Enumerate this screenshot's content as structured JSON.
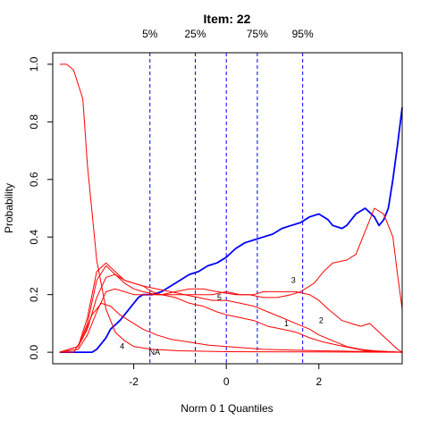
{
  "chart_data": {
    "type": "line",
    "title": "Item:  22",
    "xlabel": "Norm 0 1 Quantiles",
    "ylabel": "Probability",
    "xlim": [
      -3.75,
      3.8
    ],
    "ylim": [
      -0.04,
      1.04
    ],
    "x_ticks": [
      -2,
      0,
      2
    ],
    "y_ticks": [
      0.0,
      0.2,
      0.4,
      0.6,
      0.8,
      1.0
    ],
    "x_tick_labels": [
      "-2",
      "0",
      "2"
    ],
    "y_tick_labels": [
      "0.0",
      "0.2",
      "0.4",
      "0.6",
      "0.8",
      "1.0"
    ],
    "grid": false,
    "legend": "none",
    "quantile_lines": [
      {
        "label": "5%",
        "x": -1.65
      },
      {
        "label": "25%",
        "x": -0.67
      },
      {
        "label": "",
        "x": 0.0
      },
      {
        "label": "75%",
        "x": 0.67
      },
      {
        "label": "95%",
        "x": 1.65
      }
    ],
    "series": [
      {
        "name": "",
        "color": "#0000ff",
        "values": [
          [
            -3.6,
            0.0
          ],
          [
            -3.3,
            0.0
          ],
          [
            -2.9,
            0.0
          ],
          [
            -2.8,
            0.01
          ],
          [
            -2.6,
            0.05
          ],
          [
            -2.5,
            0.08
          ],
          [
            -2.3,
            0.11
          ],
          [
            -2.1,
            0.15
          ],
          [
            -1.9,
            0.19
          ],
          [
            -1.8,
            0.2
          ],
          [
            -1.6,
            0.2
          ],
          [
            -1.4,
            0.21
          ],
          [
            -1.2,
            0.23
          ],
          [
            -1.0,
            0.25
          ],
          [
            -0.8,
            0.27
          ],
          [
            -0.6,
            0.28
          ],
          [
            -0.4,
            0.3
          ],
          [
            -0.2,
            0.31
          ],
          [
            0.0,
            0.33
          ],
          [
            0.2,
            0.36
          ],
          [
            0.4,
            0.38
          ],
          [
            0.6,
            0.39
          ],
          [
            0.8,
            0.4
          ],
          [
            1.0,
            0.41
          ],
          [
            1.2,
            0.43
          ],
          [
            1.4,
            0.44
          ],
          [
            1.6,
            0.45
          ],
          [
            1.8,
            0.47
          ],
          [
            2.0,
            0.48
          ],
          [
            2.2,
            0.46
          ],
          [
            2.3,
            0.44
          ],
          [
            2.5,
            0.43
          ],
          [
            2.6,
            0.44
          ],
          [
            2.8,
            0.48
          ],
          [
            3.0,
            0.5
          ],
          [
            3.2,
            0.47
          ],
          [
            3.3,
            0.44
          ],
          [
            3.4,
            0.46
          ],
          [
            3.5,
            0.5
          ],
          [
            3.6,
            0.6
          ],
          [
            3.7,
            0.72
          ],
          [
            3.8,
            0.85
          ]
        ]
      },
      {
        "name": "",
        "color": "#ff0000",
        "values": [
          [
            -3.6,
            1.0
          ],
          [
            -3.45,
            1.0
          ],
          [
            -3.3,
            0.98
          ],
          [
            -3.1,
            0.88
          ],
          [
            -3.0,
            0.65
          ],
          [
            -2.8,
            0.32
          ],
          [
            -2.6,
            0.15
          ],
          [
            -2.4,
            0.07
          ],
          [
            -2.2,
            0.04
          ],
          [
            -2.0,
            0.02
          ],
          [
            -1.6,
            0.01
          ],
          [
            -1.0,
            0.005
          ],
          [
            0.0,
            0.002
          ],
          [
            3.8,
            0.0
          ]
        ]
      },
      {
        "name": "",
        "color": "#ff0000",
        "values": [
          [
            -3.6,
            0.0
          ],
          [
            -3.3,
            0.0
          ],
          [
            -3.1,
            0.05
          ],
          [
            -2.9,
            0.13
          ],
          [
            -2.7,
            0.17
          ],
          [
            -2.5,
            0.16
          ],
          [
            -2.3,
            0.13
          ],
          [
            -2.0,
            0.1
          ],
          [
            -1.8,
            0.08
          ],
          [
            -1.5,
            0.06
          ],
          [
            -1.2,
            0.045
          ],
          [
            -0.8,
            0.035
          ],
          [
            -0.4,
            0.025
          ],
          [
            0.0,
            0.02
          ],
          [
            0.4,
            0.015
          ],
          [
            0.8,
            0.01
          ],
          [
            2.0,
            0.005
          ],
          [
            3.8,
            0.0
          ]
        ]
      },
      {
        "name": "",
        "color": "#ff0000",
        "values": [
          [
            -3.6,
            0.0
          ],
          [
            -3.2,
            0.01
          ],
          [
            -3.0,
            0.06
          ],
          [
            -2.8,
            0.14
          ],
          [
            -2.6,
            0.21
          ],
          [
            -2.4,
            0.22
          ],
          [
            -2.2,
            0.21
          ],
          [
            -2.0,
            0.2
          ],
          [
            -1.7,
            0.2
          ],
          [
            -1.4,
            0.2
          ],
          [
            -1.1,
            0.21
          ],
          [
            -0.8,
            0.22
          ],
          [
            -0.5,
            0.22
          ],
          [
            -0.2,
            0.21
          ],
          [
            0.2,
            0.2
          ],
          [
            0.5,
            0.2
          ],
          [
            0.8,
            0.19
          ],
          [
            1.1,
            0.19
          ],
          [
            1.4,
            0.2
          ],
          [
            1.6,
            0.21
          ],
          [
            1.9,
            0.24
          ],
          [
            2.1,
            0.28
          ],
          [
            2.3,
            0.31
          ],
          [
            2.6,
            0.32
          ],
          [
            2.8,
            0.34
          ],
          [
            2.9,
            0.38
          ],
          [
            3.0,
            0.42
          ],
          [
            3.2,
            0.5
          ],
          [
            3.4,
            0.48
          ],
          [
            3.6,
            0.4
          ],
          [
            3.7,
            0.27
          ],
          [
            3.8,
            0.15
          ]
        ]
      },
      {
        "name": "",
        "color": "#ff0000",
        "values": [
          [
            -3.6,
            0.0
          ],
          [
            -3.2,
            0.02
          ],
          [
            -3.0,
            0.1
          ],
          [
            -2.8,
            0.25
          ],
          [
            -2.6,
            0.3
          ],
          [
            -2.4,
            0.27
          ],
          [
            -2.2,
            0.24
          ],
          [
            -2.0,
            0.22
          ],
          [
            -1.8,
            0.21
          ],
          [
            -1.5,
            0.2
          ],
          [
            -1.2,
            0.2
          ],
          [
            -0.9,
            0.2
          ],
          [
            -0.6,
            0.2
          ],
          [
            -0.3,
            0.2
          ],
          [
            0.0,
            0.21
          ],
          [
            0.3,
            0.2
          ],
          [
            0.6,
            0.2
          ],
          [
            0.8,
            0.21
          ],
          [
            1.0,
            0.21
          ],
          [
            1.2,
            0.21
          ],
          [
            1.5,
            0.21
          ],
          [
            1.8,
            0.2
          ],
          [
            2.0,
            0.18
          ],
          [
            2.2,
            0.15
          ],
          [
            2.5,
            0.11
          ],
          [
            2.7,
            0.1
          ],
          [
            2.9,
            0.09
          ],
          [
            3.1,
            0.1
          ],
          [
            3.3,
            0.07
          ],
          [
            3.5,
            0.04
          ],
          [
            3.7,
            0.01
          ],
          [
            3.8,
            0.0
          ]
        ]
      },
      {
        "name": "",
        "color": "#ff0000",
        "values": [
          [
            -3.6,
            0.0
          ],
          [
            -3.2,
            0.02
          ],
          [
            -3.0,
            0.12
          ],
          [
            -2.8,
            0.28
          ],
          [
            -2.6,
            0.31
          ],
          [
            -2.4,
            0.28
          ],
          [
            -2.2,
            0.25
          ],
          [
            -2.0,
            0.24
          ],
          [
            -1.8,
            0.23
          ],
          [
            -1.6,
            0.21
          ],
          [
            -1.4,
            0.2
          ],
          [
            -1.1,
            0.19
          ],
          [
            -0.8,
            0.17
          ],
          [
            -0.5,
            0.16
          ],
          [
            -0.2,
            0.14
          ],
          [
            0.0,
            0.13
          ],
          [
            0.3,
            0.12
          ],
          [
            0.6,
            0.11
          ],
          [
            0.9,
            0.09
          ],
          [
            1.2,
            0.08
          ],
          [
            1.5,
            0.07
          ],
          [
            1.8,
            0.05
          ],
          [
            2.1,
            0.035
          ],
          [
            2.4,
            0.025
          ],
          [
            2.7,
            0.015
          ],
          [
            3.0,
            0.005
          ],
          [
            3.8,
            0.0
          ]
        ]
      },
      {
        "name": "",
        "color": "#ff0000",
        "values": [
          [
            -3.6,
            0.0
          ],
          [
            -3.2,
            0.02
          ],
          [
            -3.0,
            0.08
          ],
          [
            -2.8,
            0.19
          ],
          [
            -2.6,
            0.26
          ],
          [
            -2.4,
            0.27
          ],
          [
            -2.2,
            0.25
          ],
          [
            -2.0,
            0.24
          ],
          [
            -1.8,
            0.23
          ],
          [
            -1.5,
            0.22
          ],
          [
            -1.2,
            0.21
          ],
          [
            -0.9,
            0.2
          ],
          [
            -0.6,
            0.19
          ],
          [
            -0.3,
            0.18
          ],
          [
            0.0,
            0.18
          ],
          [
            0.3,
            0.17
          ],
          [
            0.6,
            0.16
          ],
          [
            0.9,
            0.14
          ],
          [
            1.2,
            0.12
          ],
          [
            1.5,
            0.1
          ],
          [
            1.8,
            0.08
          ],
          [
            2.0,
            0.06
          ],
          [
            2.3,
            0.04
          ],
          [
            2.6,
            0.02
          ],
          [
            2.9,
            0.01
          ],
          [
            3.2,
            0.005
          ],
          [
            3.8,
            0.0
          ]
        ]
      }
    ],
    "option_labels": [
      {
        "text": "NA",
        "x": -1.55,
        "y": 0.0
      },
      {
        "text": "4",
        "x": -2.25,
        "y": 0.02
      },
      {
        "text": "5",
        "x": -0.15,
        "y": 0.19
      },
      {
        "text": "3",
        "x": 1.45,
        "y": 0.25
      },
      {
        "text": "1",
        "x": 1.3,
        "y": 0.1
      },
      {
        "text": "2",
        "x": 2.05,
        "y": 0.11
      }
    ]
  }
}
